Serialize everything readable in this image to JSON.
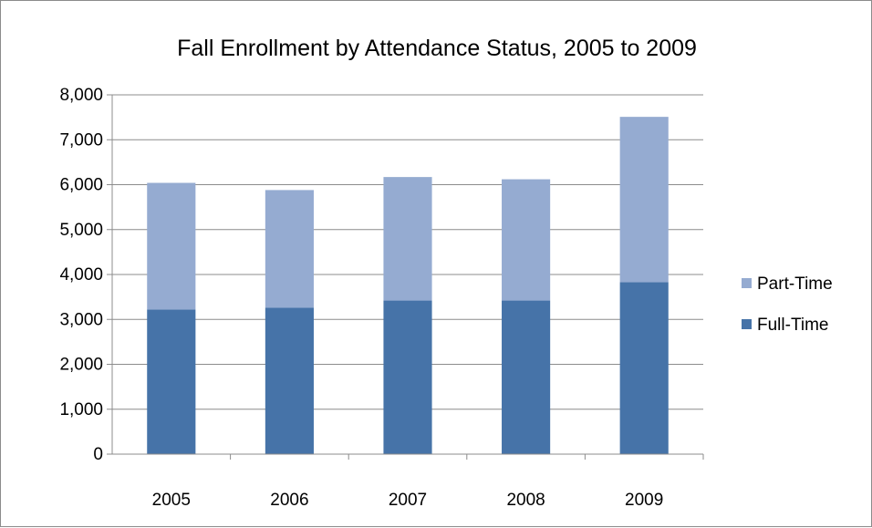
{
  "chart_data": {
    "type": "bar",
    "stacked": true,
    "title": "Fall Enrollment by Attendance Status, 2005 to 2009",
    "xlabel": "",
    "ylabel": "",
    "categories": [
      "2005",
      "2006",
      "2007",
      "2008",
      "2009"
    ],
    "series": [
      {
        "name": "Full-Time",
        "values": [
          3220,
          3260,
          3420,
          3420,
          3830
        ],
        "color": "#4673a8"
      },
      {
        "name": "Part-Time",
        "values": [
          2820,
          2620,
          2750,
          2700,
          3680
        ],
        "color": "#95abd1"
      }
    ],
    "ylim": [
      0,
      8000
    ],
    "yticks": [
      0,
      1000,
      2000,
      3000,
      4000,
      5000,
      6000,
      7000,
      8000
    ],
    "ytick_labels": [
      "0",
      "1,000",
      "2,000",
      "3,000",
      "4,000",
      "5,000",
      "6,000",
      "7,000",
      "8,000"
    ],
    "grid": true,
    "legend_position": "right",
    "legend_order": [
      "Part-Time",
      "Full-Time"
    ]
  }
}
